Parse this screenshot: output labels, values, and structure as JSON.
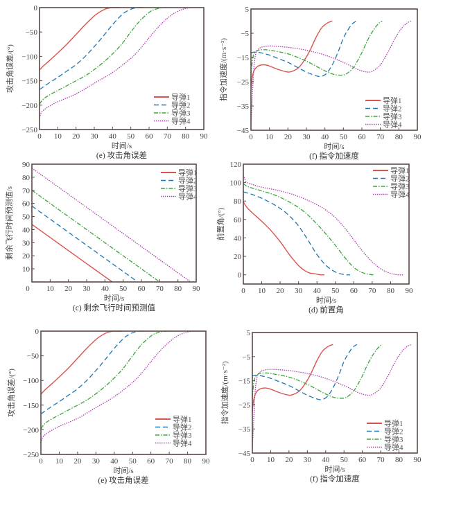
{
  "colors": {
    "m1": "#d9534f",
    "m2": "#1f77b4",
    "m3": "#3aa63a",
    "m4": "#b040b0",
    "axis": "#5a4a45"
  },
  "legend_names": [
    "导弹1",
    "导弹2",
    "导弹3",
    "导弹4"
  ],
  "chart_data": [
    {
      "id": "e1",
      "type": "line",
      "title": "(e) 攻击角误差",
      "xlabel": "时间/s",
      "ylabel": "攻击角误差/(°)",
      "xlim": [
        0,
        90
      ],
      "ylim": [
        -250,
        0
      ],
      "xticks": [
        0,
        10,
        20,
        30,
        40,
        50,
        60,
        70,
        80,
        90
      ],
      "yticks": [
        0,
        -50,
        -100,
        -150,
        -200,
        -250
      ],
      "legend": "bottom-right",
      "series": [
        {
          "name": "导弹1",
          "style": "solid",
          "x": [
            0,
            2,
            5,
            10,
            15,
            20,
            25,
            30,
            33,
            36,
            38,
            40,
            42,
            44
          ],
          "y": [
            -128,
            -120,
            -110,
            -93,
            -75,
            -55,
            -35,
            -17,
            -9,
            -3,
            -1,
            0,
            0,
            0
          ]
        },
        {
          "name": "导弹2",
          "style": "dashed",
          "x": [
            0,
            5,
            10,
            15,
            20,
            25,
            30,
            35,
            40,
            45,
            48,
            51,
            54,
            57
          ],
          "y": [
            -168,
            -155,
            -143,
            -130,
            -117,
            -100,
            -80,
            -58,
            -35,
            -15,
            -7,
            -2,
            0,
            0
          ]
        },
        {
          "name": "导弹3",
          "style": "dashdot",
          "x": [
            0,
            2,
            5,
            10,
            15,
            20,
            25,
            30,
            35,
            40,
            45,
            50,
            55,
            60,
            63,
            66,
            69,
            72
          ],
          "y": [
            -198,
            -188,
            -180,
            -170,
            -160,
            -150,
            -140,
            -127,
            -112,
            -95,
            -75,
            -50,
            -27,
            -10,
            -4,
            -1,
            0,
            0
          ]
        },
        {
          "name": "导弹4",
          "style": "dotted",
          "x": [
            0,
            1,
            3,
            5,
            10,
            20,
            30,
            40,
            50,
            55,
            60,
            65,
            70,
            74,
            78,
            81,
            84,
            88
          ],
          "y": [
            -226,
            -215,
            -208,
            -203,
            -193,
            -177,
            -155,
            -133,
            -104,
            -85,
            -62,
            -40,
            -22,
            -11,
            -4,
            -1,
            0,
            0
          ]
        }
      ]
    },
    {
      "id": "f1",
      "type": "line",
      "title": "(f) 指令加速度",
      "xlabel": "时间/s",
      "ylabel": "指令加速度/(m·s⁻²)",
      "xlim": [
        0,
        90
      ],
      "ylim": [
        -45,
        5
      ],
      "xticks": [
        0,
        10,
        20,
        30,
        40,
        50,
        60,
        70,
        80,
        90
      ],
      "yticks": [
        5,
        -5,
        -15,
        -25,
        -35,
        -45
      ],
      "legend": "bottom-right",
      "series": [
        {
          "name": "导弹1",
          "style": "solid",
          "x": [
            0,
            0.5,
            1,
            2,
            4,
            7,
            10,
            15,
            20,
            23,
            26,
            29,
            32,
            35,
            38,
            40,
            42,
            44
          ],
          "y": [
            -28,
            -24,
            -22,
            -20,
            -18.5,
            -18,
            -18.5,
            -20,
            -21,
            -20.5,
            -19,
            -16,
            -12,
            -7,
            -3,
            -1.5,
            -0.5,
            0
          ]
        },
        {
          "name": "导弹2",
          "style": "dashed",
          "x": [
            0,
            2,
            5,
            10,
            15,
            20,
            25,
            30,
            35,
            38,
            41,
            44,
            47,
            50,
            53,
            55,
            57
          ],
          "y": [
            -13,
            -12.8,
            -13,
            -14,
            -15.5,
            -17,
            -19,
            -21,
            -22.5,
            -22.8,
            -21.5,
            -18,
            -13,
            -7,
            -3,
            -1,
            0
          ]
        },
        {
          "name": "导弹3",
          "style": "dashdot",
          "x": [
            0,
            0.5,
            1,
            2,
            4,
            7,
            10,
            20,
            30,
            40,
            45,
            50,
            53,
            56,
            60,
            63,
            66,
            69,
            71
          ],
          "y": [
            -22,
            -18,
            -15,
            -13,
            -12,
            -11.8,
            -12,
            -13.5,
            -16.5,
            -20.5,
            -22,
            -22.2,
            -21,
            -18.5,
            -13,
            -8,
            -4,
            -1,
            0
          ]
        },
        {
          "name": "导弹4",
          "style": "dotted",
          "x": [
            0,
            0.5,
            1,
            1.5,
            2,
            3,
            5,
            8,
            12,
            20,
            30,
            40,
            50,
            58,
            63,
            66,
            70,
            74,
            78,
            82,
            85,
            87
          ],
          "y": [
            -43,
            -35,
            -27,
            -20,
            -16,
            -12.5,
            -11,
            -10.4,
            -10.3,
            -10.8,
            -12,
            -14,
            -17,
            -20,
            -21,
            -20.5,
            -18,
            -13,
            -7,
            -2.5,
            -0.5,
            0
          ]
        }
      ]
    },
    {
      "id": "c",
      "type": "line",
      "title": "(c) 剩余飞行时间预测值",
      "xlabel": "时间/s",
      "ylabel": "剩余飞行时间预测值/s",
      "xlim": [
        0,
        90
      ],
      "ylim": [
        0,
        90
      ],
      "xticks": [
        0,
        10,
        20,
        30,
        40,
        50,
        60,
        70,
        80,
        90
      ],
      "yticks": [
        10,
        20,
        30,
        40,
        50,
        60,
        70,
        80,
        90
      ],
      "legend": "top-right",
      "series": [
        {
          "name": "导弹1",
          "style": "solid",
          "x": [
            0,
            44
          ],
          "y": [
            44,
            0
          ]
        },
        {
          "name": "导弹2",
          "style": "dashed",
          "x": [
            0,
            58
          ],
          "y": [
            58,
            0
          ]
        },
        {
          "name": "导弹3",
          "style": "dashdot",
          "x": [
            0,
            70
          ],
          "y": [
            70,
            0
          ]
        },
        {
          "name": "导弹4",
          "style": "dotted",
          "x": [
            0,
            87
          ],
          "y": [
            87,
            0
          ]
        }
      ]
    },
    {
      "id": "d",
      "type": "line",
      "title": "(d) 前置角",
      "xlabel": "时间/s",
      "ylabel": "前置角/(°)",
      "xlim": [
        0,
        90
      ],
      "ylim": [
        -10,
        120
      ],
      "xticks": [
        0,
        10,
        20,
        30,
        40,
        50,
        60,
        70,
        80,
        90
      ],
      "yticks": [
        0,
        20,
        40,
        60,
        80,
        100,
        120
      ],
      "legend": "top-right",
      "series": [
        {
          "name": "导弹1",
          "style": "solid",
          "x": [
            0,
            2,
            5,
            10,
            15,
            20,
            25,
            30,
            33,
            36,
            39,
            42,
            44
          ],
          "y": [
            79,
            73,
            67,
            58,
            48,
            36,
            22,
            10,
            5,
            2,
            1,
            0,
            0
          ]
        },
        {
          "name": "导弹2",
          "style": "dashed",
          "x": [
            0,
            5,
            10,
            15,
            20,
            25,
            30,
            35,
            40,
            45,
            50,
            53,
            56,
            58
          ],
          "y": [
            90,
            87,
            83,
            78,
            72,
            64,
            53,
            38,
            22,
            10,
            3,
            1,
            0,
            0
          ]
        },
        {
          "name": "导弹3",
          "style": "dashdot",
          "x": [
            0,
            2,
            5,
            10,
            15,
            20,
            25,
            30,
            35,
            40,
            45,
            50,
            55,
            60,
            64,
            67,
            70,
            71
          ],
          "y": [
            99,
            96,
            94,
            91,
            88,
            84,
            79,
            73,
            65,
            55,
            44,
            32,
            19,
            8,
            3,
            1,
            0,
            0
          ]
        },
        {
          "name": "导弹4",
          "style": "dotted",
          "x": [
            0,
            1,
            2,
            5,
            10,
            20,
            30,
            40,
            45,
            50,
            55,
            60,
            65,
            70,
            75,
            78,
            81,
            84,
            87
          ],
          "y": [
            108,
            103,
            100,
            98,
            95,
            91,
            85,
            76,
            70,
            62,
            51,
            38,
            25,
            14,
            6,
            3,
            1,
            0,
            0
          ]
        }
      ]
    },
    {
      "id": "e2",
      "type": "line",
      "title": "(e) 攻击角误差",
      "xlabel": "时间/s",
      "ylabel": "攻击角误差/(°)",
      "xlim": [
        0,
        90
      ],
      "ylim": [
        -250,
        0
      ],
      "xticks": [
        0,
        10,
        20,
        30,
        40,
        50,
        60,
        70,
        80,
        90
      ],
      "yticks": [
        0,
        -50,
        -100,
        -150,
        -200,
        -250
      ],
      "legend": "bottom-right",
      "series": [
        {
          "name": "导弹1",
          "style": "solid",
          "x": [
            0,
            2,
            5,
            10,
            15,
            20,
            25,
            30,
            33,
            36,
            38,
            40,
            42,
            44
          ],
          "y": [
            -128,
            -120,
            -110,
            -93,
            -75,
            -55,
            -35,
            -17,
            -9,
            -3,
            -1,
            0,
            0,
            0
          ]
        },
        {
          "name": "导弹2",
          "style": "dashed",
          "x": [
            0,
            5,
            10,
            15,
            20,
            25,
            30,
            35,
            40,
            45,
            48,
            51,
            54,
            57
          ],
          "y": [
            -168,
            -155,
            -143,
            -130,
            -117,
            -100,
            -80,
            -58,
            -35,
            -15,
            -7,
            -2,
            0,
            0
          ]
        },
        {
          "name": "导弹3",
          "style": "dashdot",
          "x": [
            0,
            2,
            5,
            10,
            15,
            20,
            25,
            30,
            35,
            40,
            45,
            50,
            55,
            60,
            63,
            66,
            69,
            72
          ],
          "y": [
            -198,
            -188,
            -180,
            -170,
            -160,
            -150,
            -140,
            -127,
            -112,
            -95,
            -75,
            -50,
            -27,
            -10,
            -4,
            -1,
            0,
            0
          ]
        },
        {
          "name": "导弹4",
          "style": "dotted",
          "x": [
            0,
            1,
            3,
            5,
            10,
            20,
            30,
            40,
            50,
            55,
            60,
            65,
            70,
            74,
            78,
            81,
            84,
            88
          ],
          "y": [
            -226,
            -215,
            -208,
            -203,
            -193,
            -177,
            -155,
            -133,
            -104,
            -85,
            -62,
            -40,
            -22,
            -11,
            -4,
            -1,
            0,
            0
          ]
        }
      ]
    },
    {
      "id": "f2",
      "type": "line",
      "title": "(f) 指令加速度",
      "xlabel": "时间/s",
      "ylabel": "指令加速度/(m·s⁻²)",
      "xlim": [
        0,
        90
      ],
      "ylim": [
        -45,
        5
      ],
      "xticks": [
        0,
        10,
        20,
        30,
        40,
        50,
        60,
        70,
        80,
        90
      ],
      "yticks": [
        5,
        -5,
        -15,
        -25,
        -35,
        -45
      ],
      "legend": "bottom-right",
      "series": [
        {
          "name": "导弹1",
          "style": "solid",
          "x": [
            0,
            0.5,
            1,
            2,
            4,
            7,
            10,
            15,
            20,
            23,
            26,
            29,
            32,
            35,
            38,
            40,
            42,
            44
          ],
          "y": [
            -28,
            -24,
            -22,
            -20,
            -18.5,
            -18,
            -18.5,
            -20,
            -21,
            -20.5,
            -19,
            -16,
            -12,
            -7,
            -3,
            -1.5,
            -0.5,
            0
          ]
        },
        {
          "name": "导弹2",
          "style": "dashed",
          "x": [
            0,
            2,
            5,
            10,
            15,
            20,
            25,
            30,
            35,
            38,
            41,
            44,
            47,
            50,
            53,
            55,
            57
          ],
          "y": [
            -13,
            -12.8,
            -13,
            -14,
            -15.5,
            -17,
            -19,
            -21,
            -22.5,
            -22.8,
            -21.5,
            -18,
            -13,
            -7,
            -3,
            -1,
            0
          ]
        },
        {
          "name": "导弹3",
          "style": "dashdot",
          "x": [
            0,
            0.5,
            1,
            2,
            4,
            7,
            10,
            20,
            30,
            40,
            45,
            50,
            53,
            56,
            60,
            63,
            66,
            69,
            71
          ],
          "y": [
            -22,
            -18,
            -15,
            -13,
            -12,
            -11.8,
            -12,
            -13.5,
            -16.5,
            -20.5,
            -22,
            -22.2,
            -21,
            -18.5,
            -13,
            -8,
            -4,
            -1,
            0
          ]
        },
        {
          "name": "导弹4",
          "style": "dotted",
          "x": [
            0,
            0.5,
            1,
            1.5,
            2,
            3,
            5,
            8,
            12,
            20,
            30,
            40,
            50,
            58,
            63,
            66,
            70,
            74,
            78,
            82,
            85,
            87
          ],
          "y": [
            -43,
            -35,
            -27,
            -20,
            -16,
            -12.5,
            -11,
            -10.4,
            -10.3,
            -10.8,
            -12,
            -14,
            -17,
            -20,
            -21,
            -20.5,
            -18,
            -13,
            -7,
            -2.5,
            -0.5,
            0
          ]
        }
      ]
    }
  ]
}
